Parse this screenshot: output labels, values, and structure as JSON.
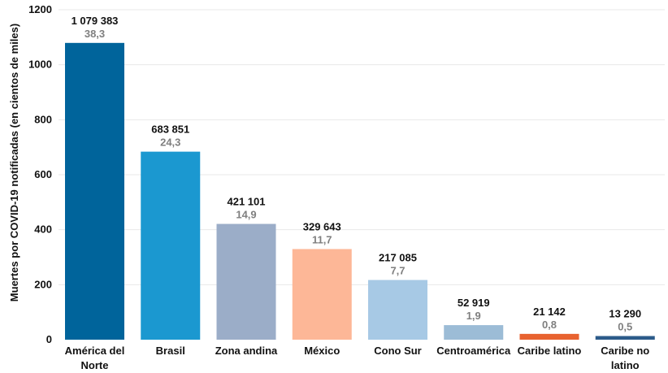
{
  "chart_data": {
    "type": "bar",
    "title": "",
    "xlabel": "",
    "ylabel": "Muertes por COVID-19 notificadas (en cientos de miles)",
    "ylim": [
      0,
      1200
    ],
    "yticks": [
      0,
      200,
      400,
      600,
      800,
      1000,
      1200
    ],
    "grid": true,
    "categories": [
      [
        "América del",
        "Norte"
      ],
      [
        "Brasil"
      ],
      [
        "Zona andina"
      ],
      [
        "México"
      ],
      [
        "Cono Sur"
      ],
      [
        "Centroamérica"
      ],
      [
        "Caribe latino"
      ],
      [
        "Caribe no",
        "latino"
      ]
    ],
    "values": [
      1079.383,
      683.851,
      421.101,
      329.643,
      217.085,
      52.919,
      21.142,
      13.29
    ],
    "value_labels": [
      "1 079 383",
      "683 851",
      "421 101",
      "329 643",
      "217 085",
      "52 919",
      "21 142",
      "13 290"
    ],
    "percent_labels": [
      "38,3",
      "24,3",
      "14,9",
      "11,7",
      "7,7",
      "1,9",
      "0,8",
      "0,5"
    ],
    "colors": [
      "#00649b",
      "#1b98d0",
      "#9badc8",
      "#fdb797",
      "#a7c9e5",
      "#9cbcd6",
      "#e8622f",
      "#2c5b8a"
    ]
  }
}
